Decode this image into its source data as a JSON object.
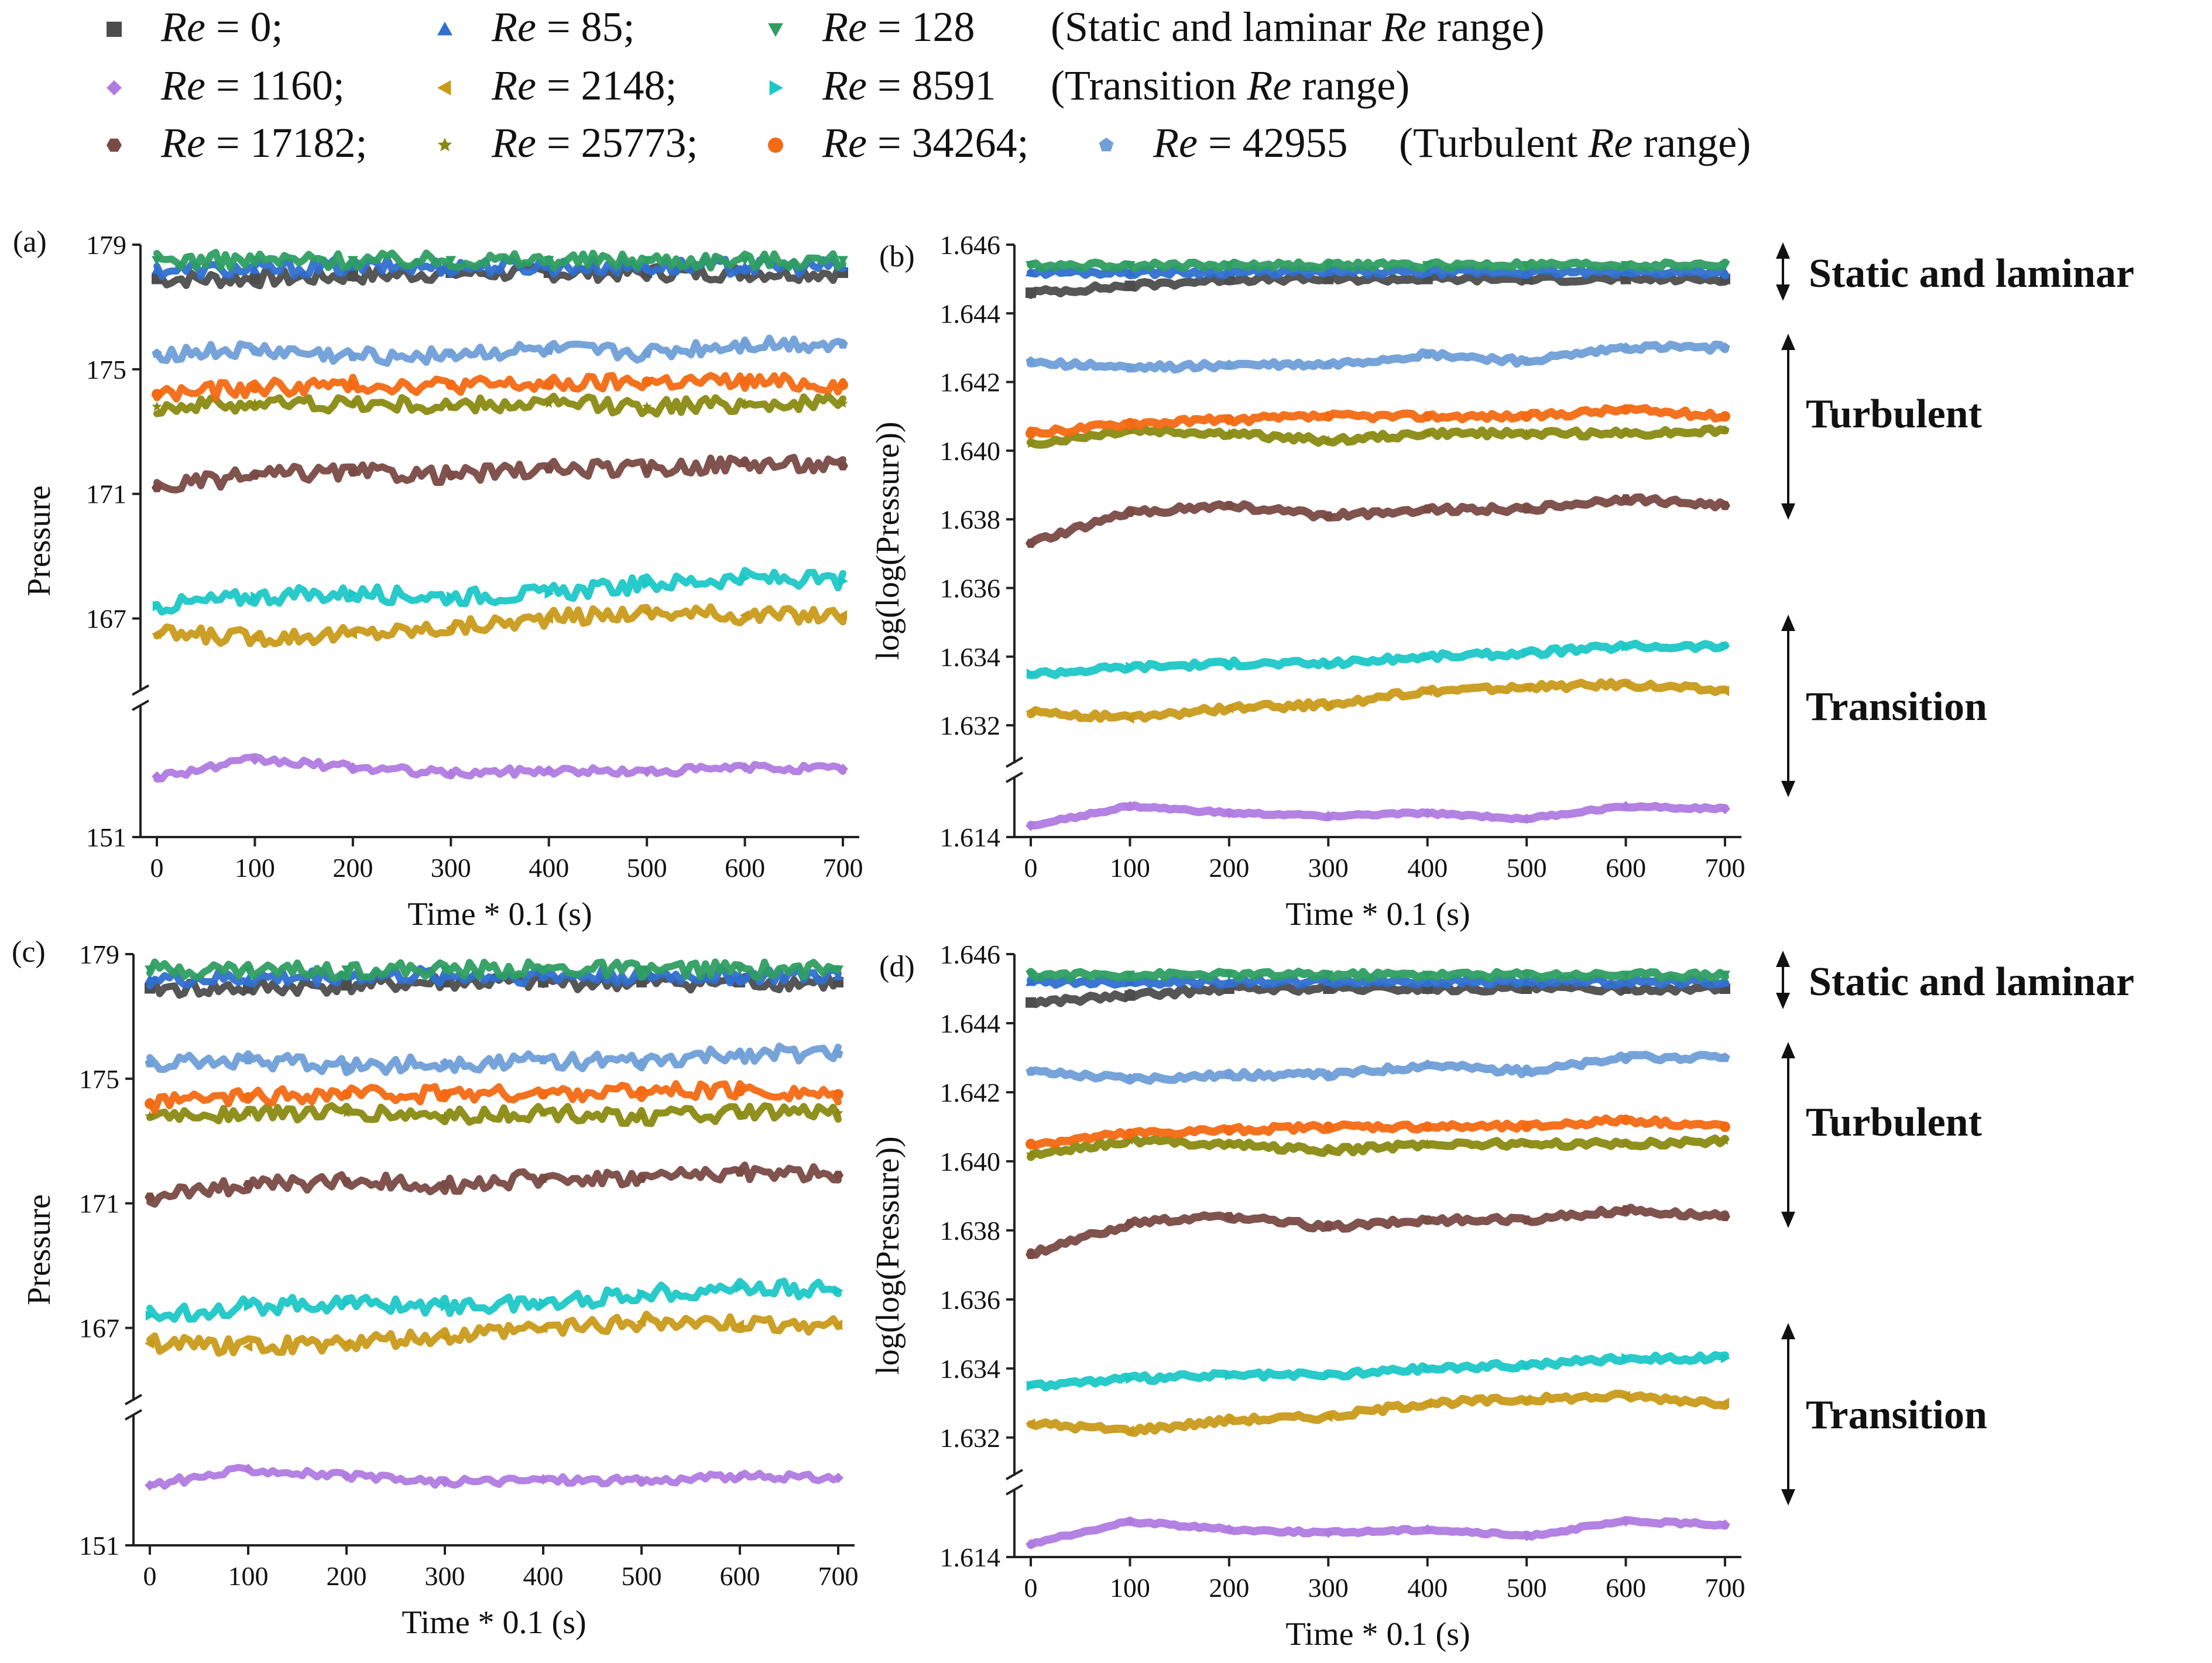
{
  "legend": {
    "row_notes": [
      "(Static and laminar Re range)",
      "(Transition Re range)",
      "(Turbulent Re range)"
    ],
    "items": [
      {
        "re_prefix": "Re",
        "label": " = 0;",
        "color": "#4d4d4d",
        "marker": "square",
        "row": 0,
        "col": 0
      },
      {
        "re_prefix": "Re",
        "label": " = 85;",
        "color": "#2f6fd0",
        "marker": "triangle-up",
        "row": 0,
        "col": 1
      },
      {
        "re_prefix": "Re",
        "label": " = 128",
        "color": "#2e9e62",
        "marker": "triangle-down",
        "row": 0,
        "col": 2
      },
      {
        "re_prefix": "Re",
        "label": " = 1160;",
        "color": "#b07be0",
        "marker": "diamond",
        "row": 1,
        "col": 0
      },
      {
        "re_prefix": "Re",
        "label": " = 2148;",
        "color": "#c99a1a",
        "marker": "triangle-left",
        "row": 1,
        "col": 1
      },
      {
        "re_prefix": "Re",
        "label": " = 8591",
        "color": "#1cc7c7",
        "marker": "triangle-right",
        "row": 1,
        "col": 2
      },
      {
        "re_prefix": "Re",
        "label": " = 17182;",
        "color": "#7a4a44",
        "marker": "hexagon",
        "row": 2,
        "col": 0
      },
      {
        "re_prefix": "Re",
        "label": " = 25773;",
        "color": "#8a8a12",
        "marker": "star",
        "row": 2,
        "col": 1
      },
      {
        "re_prefix": "Re",
        "label": " = 34264;",
        "color": "#f36a13",
        "marker": "circle",
        "row": 2,
        "col": 2
      },
      {
        "re_prefix": "Re",
        "label": " = 42955",
        "color": "#6f9fd8",
        "marker": "pentagon",
        "row": 2,
        "col": 3
      }
    ]
  },
  "regions": {
    "static": "Static and laminar",
    "turbulent": "Turbulent",
    "transition": "Transition"
  },
  "chart_data": [
    {
      "panel": "(a)",
      "type": "scatter",
      "xlabel": "Time * 0.1 (s)",
      "ylabel": "Pressure",
      "xlim": [
        0,
        700
      ],
      "xticks": [
        "0",
        "100",
        "200",
        "300",
        "400",
        "500",
        "600",
        "700"
      ],
      "y_break": true,
      "ylim_upper": [
        165,
        179
      ],
      "ylim_lower": [
        151,
        159
      ],
      "yticks": [
        "151",
        "167",
        "171",
        "175",
        "179"
      ],
      "series": [
        {
          "name": "Re = 0",
          "values": [
            177.9,
            177.9,
            178.0,
            178.1,
            178.1,
            178.1,
            178.1,
            178.1
          ]
        },
        {
          "name": "Re = 85",
          "values": [
            178.2,
            178.2,
            178.3,
            178.3,
            178.3,
            178.3,
            178.3,
            178.3
          ]
        },
        {
          "name": "Re = 128",
          "values": [
            178.5,
            178.5,
            178.5,
            178.5,
            178.5,
            178.5,
            178.5,
            178.5
          ]
        },
        {
          "name": "Re = 1160",
          "values": [
            155.0,
            156.1,
            155.6,
            155.2,
            155.4,
            155.3,
            155.6,
            155.5
          ]
        },
        {
          "name": "Re = 2148",
          "values": [
            166.5,
            166.4,
            166.5,
            166.7,
            167.0,
            167.2,
            167.1,
            167.1
          ]
        },
        {
          "name": "Re = 8591",
          "values": [
            167.4,
            167.7,
            167.8,
            167.7,
            167.8,
            168.1,
            168.3,
            168.2
          ]
        },
        {
          "name": "Re = 17182",
          "values": [
            171.2,
            171.6,
            171.7,
            171.6,
            171.8,
            171.8,
            172.0,
            171.9
          ]
        },
        {
          "name": "Re = 25773",
          "values": [
            173.8,
            173.9,
            173.9,
            173.8,
            173.9,
            173.8,
            173.9,
            173.9
          ]
        },
        {
          "name": "Re = 34264",
          "values": [
            174.2,
            174.4,
            174.5,
            174.5,
            174.5,
            174.6,
            174.6,
            174.5
          ]
        },
        {
          "name": "Re = 42955",
          "values": [
            175.5,
            175.6,
            175.4,
            175.5,
            175.6,
            175.5,
            175.8,
            175.8
          ]
        }
      ]
    },
    {
      "panel": "(b)",
      "type": "scatter",
      "xlabel": "Time * 0.1 (s)",
      "ylabel": "log(log(Pressure))",
      "xlim": [
        0,
        700
      ],
      "xticks": [
        "0",
        "100",
        "200",
        "300",
        "400",
        "500",
        "600",
        "700"
      ],
      "y_break": true,
      "ylim_upper": [
        1.6312,
        1.646
      ],
      "ylim_lower": [
        1.614,
        1.6175
      ],
      "yticks": [
        "1.614",
        "1.632",
        "1.634",
        "1.636",
        "1.638",
        "1.640",
        "1.642",
        "1.644",
        "1.646"
      ],
      "series": [
        {
          "name": "Re = 0",
          "values": [
            1.6446,
            1.6448,
            1.645,
            1.645,
            1.645,
            1.645,
            1.645,
            1.645
          ]
        },
        {
          "name": "Re = 85",
          "values": [
            1.6452,
            1.6452,
            1.6452,
            1.6452,
            1.6452,
            1.6452,
            1.6452,
            1.6452
          ]
        },
        {
          "name": "Re = 128",
          "values": [
            1.6454,
            1.6454,
            1.6454,
            1.6454,
            1.6454,
            1.6454,
            1.6454,
            1.6454
          ]
        },
        {
          "name": "Re = 1160",
          "values": [
            1.6148,
            1.6162,
            1.6157,
            1.6155,
            1.6157,
            1.6153,
            1.6162,
            1.616
          ]
        },
        {
          "name": "Re = 2148",
          "values": [
            1.6324,
            1.6322,
            1.6325,
            1.6326,
            1.633,
            1.6331,
            1.6332,
            1.633
          ]
        },
        {
          "name": "Re = 8591",
          "values": [
            1.6335,
            1.6337,
            1.6338,
            1.6338,
            1.634,
            1.6341,
            1.6343,
            1.6343
          ]
        },
        {
          "name": "Re = 17182",
          "values": [
            1.6373,
            1.6382,
            1.6384,
            1.6381,
            1.6383,
            1.6383,
            1.6386,
            1.6384
          ]
        },
        {
          "name": "Re = 25773",
          "values": [
            1.6402,
            1.6406,
            1.6405,
            1.6403,
            1.6405,
            1.6405,
            1.6405,
            1.6406
          ]
        },
        {
          "name": "Re = 34264",
          "values": [
            1.6405,
            1.6408,
            1.6409,
            1.641,
            1.641,
            1.641,
            1.6412,
            1.641
          ]
        },
        {
          "name": "Re = 42955",
          "values": [
            1.6426,
            1.6424,
            1.6425,
            1.6425,
            1.6428,
            1.6426,
            1.643,
            1.643
          ]
        }
      ]
    },
    {
      "panel": "(c)",
      "type": "scatter",
      "xlabel": "Time * 0.1 (s)",
      "ylabel": "Pressure",
      "xlim": [
        0,
        700
      ],
      "xticks": [
        "0",
        "100",
        "200",
        "300",
        "400",
        "500",
        "600",
        "700"
      ],
      "y_break": true,
      "ylim_upper": [
        165,
        179
      ],
      "ylim_lower": [
        151,
        159
      ],
      "yticks": [
        "151",
        "167",
        "171",
        "175",
        "179"
      ],
      "series": [
        {
          "name": "Re = 0",
          "values": [
            177.9,
            177.9,
            178.0,
            178.1,
            178.1,
            178.1,
            178.1,
            178.1
          ]
        },
        {
          "name": "Re = 85",
          "values": [
            178.2,
            178.2,
            178.3,
            178.3,
            178.3,
            178.3,
            178.3,
            178.3
          ]
        },
        {
          "name": "Re = 128",
          "values": [
            178.5,
            178.5,
            178.5,
            178.5,
            178.5,
            178.5,
            178.5,
            178.5
          ]
        },
        {
          "name": "Re = 1160",
          "values": [
            155.0,
            156.1,
            155.6,
            155.2,
            155.4,
            155.3,
            155.6,
            155.5
          ]
        },
        {
          "name": "Re = 2148",
          "values": [
            166.5,
            166.4,
            166.5,
            166.7,
            167.0,
            167.2,
            167.1,
            167.1
          ]
        },
        {
          "name": "Re = 8591",
          "values": [
            167.4,
            167.7,
            167.8,
            167.7,
            167.8,
            168.1,
            168.3,
            168.2
          ]
        },
        {
          "name": "Re = 17182",
          "values": [
            171.2,
            171.6,
            171.7,
            171.6,
            171.8,
            171.8,
            172.0,
            171.9
          ]
        },
        {
          "name": "Re = 25773",
          "values": [
            173.8,
            173.9,
            173.9,
            173.8,
            173.9,
            173.8,
            173.9,
            173.9
          ]
        },
        {
          "name": "Re = 34264",
          "values": [
            174.2,
            174.4,
            174.5,
            174.5,
            174.5,
            174.6,
            174.6,
            174.5
          ]
        },
        {
          "name": "Re = 42955",
          "values": [
            175.5,
            175.6,
            175.4,
            175.5,
            175.6,
            175.5,
            175.8,
            175.8
          ]
        }
      ]
    },
    {
      "panel": "(d)",
      "type": "scatter",
      "xlabel": "Time * 0.1 (s)",
      "ylabel": "log(log(Pressure))",
      "xlim": [
        0,
        700
      ],
      "xticks": [
        "0",
        "100",
        "200",
        "300",
        "400",
        "500",
        "600",
        "700"
      ],
      "y_break": true,
      "ylim_upper": [
        1.6312,
        1.646
      ],
      "ylim_lower": [
        1.614,
        1.6175
      ],
      "yticks": [
        "1.614",
        "1.632",
        "1.634",
        "1.636",
        "1.638",
        "1.640",
        "1.642",
        "1.644",
        "1.646"
      ],
      "series": [
        {
          "name": "Re = 0",
          "values": [
            1.6446,
            1.6448,
            1.645,
            1.645,
            1.645,
            1.645,
            1.645,
            1.645
          ]
        },
        {
          "name": "Re = 85",
          "values": [
            1.6452,
            1.6452,
            1.6452,
            1.6452,
            1.6452,
            1.6452,
            1.6452,
            1.6452
          ]
        },
        {
          "name": "Re = 128",
          "values": [
            1.6454,
            1.6454,
            1.6454,
            1.6454,
            1.6454,
            1.6454,
            1.6454,
            1.6454
          ]
        },
        {
          "name": "Re = 1160",
          "values": [
            1.6148,
            1.6162,
            1.6157,
            1.6155,
            1.6157,
            1.6153,
            1.6162,
            1.616
          ]
        },
        {
          "name": "Re = 2148",
          "values": [
            1.6324,
            1.6322,
            1.6325,
            1.6326,
            1.633,
            1.6331,
            1.6332,
            1.633
          ]
        },
        {
          "name": "Re = 8591",
          "values": [
            1.6335,
            1.6337,
            1.6338,
            1.6338,
            1.634,
            1.6341,
            1.6343,
            1.6343
          ]
        },
        {
          "name": "Re = 17182",
          "values": [
            1.6373,
            1.6382,
            1.6384,
            1.6381,
            1.6383,
            1.6383,
            1.6386,
            1.6384
          ]
        },
        {
          "name": "Re = 25773",
          "values": [
            1.6402,
            1.6406,
            1.6405,
            1.6403,
            1.6405,
            1.6405,
            1.6405,
            1.6406
          ]
        },
        {
          "name": "Re = 34264",
          "values": [
            1.6405,
            1.6408,
            1.6409,
            1.641,
            1.641,
            1.641,
            1.6412,
            1.641
          ]
        },
        {
          "name": "Re = 42955",
          "values": [
            1.6426,
            1.6424,
            1.6425,
            1.6425,
            1.6428,
            1.6426,
            1.643,
            1.643
          ]
        }
      ]
    }
  ]
}
